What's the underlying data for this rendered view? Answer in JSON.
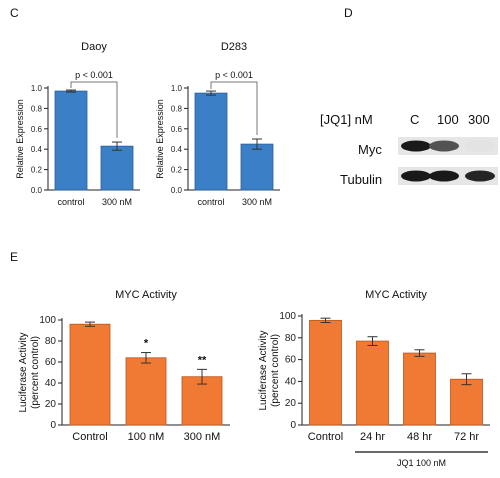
{
  "panels": {
    "c": {
      "letter": "C"
    },
    "d": {
      "letter": "D"
    },
    "e": {
      "letter": "E"
    }
  },
  "blot": {
    "treatment_label": "[JQ1] nM",
    "lanes": [
      "C",
      "100",
      "300"
    ],
    "rows": [
      "Myc",
      "Tubulin"
    ],
    "band_intensity": {
      "Myc": [
        1.0,
        0.75,
        0.12
      ],
      "Tubulin": [
        1.0,
        1.0,
        0.95
      ]
    }
  },
  "colors": {
    "blue_bar": "#3b7fc6",
    "blue_edge": "#2c5f96",
    "orange_bar": "#f07a33",
    "orange_edge": "#b85518",
    "axis": "#222222"
  },
  "chart_data": [
    {
      "type": "bar",
      "title": "Daoy",
      "ylabel": "Relative Expression",
      "categories": [
        "control",
        "300 nM"
      ],
      "values": [
        0.97,
        0.43
      ],
      "errors": [
        0.01,
        0.04
      ],
      "ylim": [
        0,
        1.0
      ],
      "yticks": [
        "0.0",
        "0.2",
        "0.4",
        "0.6",
        "0.8",
        "1.0"
      ],
      "annotation": "p < 0.001",
      "color": "#3b7fc6"
    },
    {
      "type": "bar",
      "title": "D283",
      "ylabel": "Relative Expression",
      "categories": [
        "control",
        "300 nM"
      ],
      "values": [
        0.95,
        0.45
      ],
      "errors": [
        0.02,
        0.05
      ],
      "ylim": [
        0,
        1.0
      ],
      "yticks": [
        "0.0",
        "0.2",
        "0.4",
        "0.6",
        "0.8",
        "1.0"
      ],
      "annotation": "p < 0.001",
      "color": "#3b7fc6"
    },
    {
      "type": "bar",
      "title": "MYC Activity",
      "ylabel": "Luciferase Activity (percent control)",
      "categories": [
        "Control",
        "100 nM",
        "300 nM"
      ],
      "values": [
        96,
        64,
        46
      ],
      "errors": [
        2,
        5,
        7
      ],
      "significance": [
        "",
        "*",
        "**"
      ],
      "ylim": [
        0,
        100
      ],
      "yticks": [
        "0",
        "20",
        "40",
        "60",
        "80",
        "100"
      ],
      "color": "#f07a33"
    },
    {
      "type": "bar",
      "title": "MYC Activity",
      "ylabel": "Luciferase Activity (percent control)",
      "categories": [
        "Control",
        "24 hr",
        "48 hr",
        "72 hr"
      ],
      "values": [
        96,
        77,
        66,
        42
      ],
      "errors": [
        2,
        4,
        3,
        5
      ],
      "ylim": [
        0,
        100
      ],
      "yticks": [
        "0",
        "20",
        "40",
        "60",
        "80",
        "100"
      ],
      "group_label": "JQ1 100 nM",
      "color": "#f07a33"
    }
  ]
}
